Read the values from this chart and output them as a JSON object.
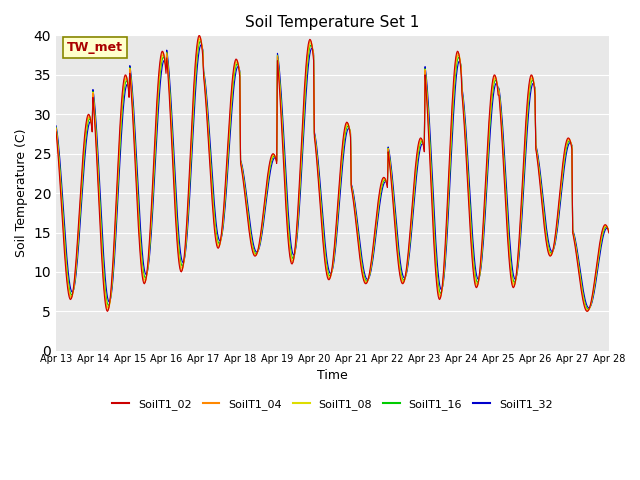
{
  "title": "Soil Temperature Set 1",
  "ylabel": "Soil Temperature (C)",
  "xlabel": "Time",
  "ylim": [
    0,
    40
  ],
  "annotation": "TW_met",
  "annotation_color": "#aa0000",
  "background_color": "#e8e8e8",
  "series_colors": [
    "#cc0000",
    "#ff8800",
    "#dddd00",
    "#00cc00",
    "#0000cc"
  ],
  "series_labels": [
    "SoilT1_02",
    "SoilT1_04",
    "SoilT1_08",
    "SoilT1_16",
    "SoilT1_32"
  ],
  "date_labels": [
    "Apr 13",
    "Apr 14",
    "Apr 15",
    "Apr 16",
    "Apr 17",
    "Apr 18",
    "Apr 19",
    "Apr 20",
    "Apr 21",
    "Apr 22",
    "Apr 23",
    "Apr 24",
    "Apr 25",
    "Apr 26",
    "Apr 27",
    "Apr 28"
  ],
  "n_days": 15,
  "points_per_day": 48,
  "base_min": [
    6.5,
    5.0,
    8.5,
    10.0,
    13.0,
    12.0,
    11.0,
    9.0,
    8.5,
    8.5,
    6.5,
    8.0,
    8.0,
    12.0,
    5.0
  ],
  "base_max": [
    30.0,
    35.0,
    38.0,
    40.0,
    37.0,
    25.0,
    39.5,
    29.0,
    22.0,
    27.0,
    38.0,
    35.0,
    35.0,
    27.0,
    16.0
  ],
  "peak_offset": [
    0.65,
    0.65,
    0.65,
    0.65,
    0.65,
    0.65,
    0.65,
    0.65,
    0.65,
    0.65,
    0.65,
    0.65,
    0.65,
    0.65,
    0.65
  ],
  "depth_offsets": [
    0.0,
    0.3,
    0.5,
    0.7,
    1.2
  ],
  "depth_amplitude_scale": [
    1.0,
    0.99,
    0.97,
    0.95,
    0.92
  ],
  "yticks": [
    0,
    5,
    10,
    15,
    20,
    25,
    30,
    35,
    40
  ]
}
